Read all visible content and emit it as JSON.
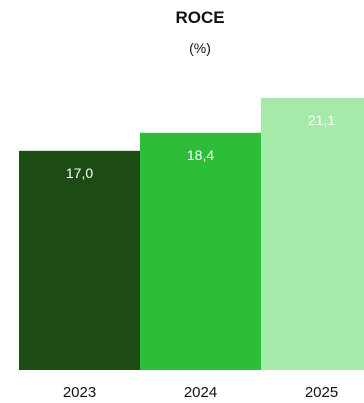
{
  "chart_data": {
    "type": "bar",
    "title": "ROCE",
    "subtitle": "(%)",
    "categories": [
      "2023",
      "2024",
      "2025"
    ],
    "values": [
      17.0,
      18.4,
      21.1
    ],
    "value_labels": [
      "17,0",
      "18,4",
      "21,1"
    ],
    "colors": [
      "#1c4c14",
      "#2ebd38",
      "#a6eaaa"
    ],
    "label_colors": [
      "#ffffff",
      "#ffffff",
      "#ffffff"
    ],
    "ylim": [
      0,
      21.1
    ],
    "grid": false,
    "legend": "none"
  }
}
